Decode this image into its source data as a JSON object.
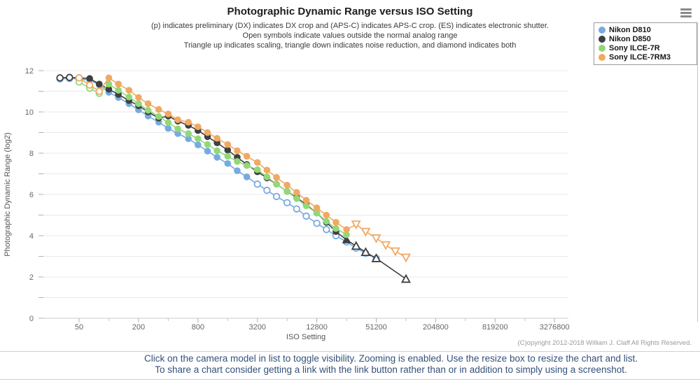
{
  "header": {
    "title": "Photographic Dynamic Range versus ISO Setting",
    "subtitle1": "(p) indicates preliminary (DX) indicates DX crop and (APS‑C) indicates APS‑C crop. (ES) indicates electronic shutter.",
    "subtitle2": "Open symbols indicate values outside the normal analog range",
    "subtitle3": "Triangle up indicates scaling, triangle down indicates noise reduction, and diamond indicates both"
  },
  "legend": {
    "items": [
      {
        "label": "Nikon D810",
        "color": "#76abdf"
      },
      {
        "label": "Nikon D850",
        "color": "#3f3f41"
      },
      {
        "label": "Sony ILCE-7R",
        "color": "#92d878"
      },
      {
        "label": "Sony ILCE-7RM3",
        "color": "#f0a963"
      }
    ]
  },
  "chart_data": {
    "type": "line",
    "title": "Photographic Dynamic Range versus ISO Setting",
    "xlabel": "ISO Setting",
    "ylabel": "Photographic Dynamic Range (log2)",
    "x_scale": "log2",
    "x_tick_values": [
      50,
      200,
      800,
      3200,
      12800,
      51200,
      204800,
      819200,
      3276800
    ],
    "x_tick_labels": [
      "50",
      "200",
      "800",
      "3200",
      "12800",
      "51200",
      "204800",
      "819200",
      "3276800"
    ],
    "y_tick_labels": [
      0,
      2,
      4,
      6,
      8,
      10,
      12
    ],
    "ylim": [
      0,
      12.3
    ],
    "grid": "horizontal-every-1",
    "legend_position": "top-right",
    "marker_note": "points are [iso, pdr, symbol(c=circle, tu=triangle-up, td=triangle-down), open(1=open outside analog range)]",
    "series": [
      {
        "name": "Nikon D810",
        "color": "#76abdf",
        "points": [
          [
            32,
            11.6,
            "c",
            1
          ],
          [
            40,
            11.62,
            "c",
            1
          ],
          [
            50,
            11.6,
            "c",
            1
          ],
          [
            64,
            11.55,
            "c",
            0
          ],
          [
            80,
            11.3,
            "c",
            0
          ],
          [
            100,
            10.95,
            "c",
            0
          ],
          [
            125,
            10.7,
            "c",
            0
          ],
          [
            160,
            10.4,
            "c",
            0
          ],
          [
            200,
            10.1,
            "c",
            0
          ],
          [
            250,
            9.8,
            "c",
            0
          ],
          [
            320,
            9.5,
            "c",
            0
          ],
          [
            400,
            9.2,
            "c",
            0
          ],
          [
            500,
            8.95,
            "c",
            0
          ],
          [
            640,
            8.7,
            "c",
            0
          ],
          [
            800,
            8.4,
            "c",
            0
          ],
          [
            1000,
            8.1,
            "c",
            0
          ],
          [
            1250,
            7.8,
            "c",
            0
          ],
          [
            1600,
            7.5,
            "c",
            0
          ],
          [
            2000,
            7.15,
            "c",
            0
          ],
          [
            2500,
            6.85,
            "c",
            0
          ],
          [
            3200,
            6.5,
            "c",
            1
          ],
          [
            4000,
            6.2,
            "c",
            1
          ],
          [
            5000,
            5.9,
            "c",
            1
          ],
          [
            6400,
            5.6,
            "c",
            1
          ],
          [
            8000,
            5.3,
            "c",
            1
          ],
          [
            10000,
            4.95,
            "c",
            1
          ],
          [
            12800,
            4.6,
            "c",
            1
          ],
          [
            16000,
            4.3,
            "c",
            1
          ],
          [
            20000,
            4.0,
            "c",
            1
          ],
          [
            25600,
            3.7,
            "c",
            1
          ],
          [
            32000,
            3.4,
            "c",
            1
          ],
          [
            40000,
            3.15,
            "c",
            1
          ],
          [
            51200,
            2.9,
            "c",
            1
          ]
        ]
      },
      {
        "name": "Nikon D850",
        "color": "#3f3f41",
        "points": [
          [
            32,
            11.65,
            "c",
            1
          ],
          [
            40,
            11.67,
            "c",
            1
          ],
          [
            50,
            11.65,
            "c",
            1
          ],
          [
            64,
            11.62,
            "c",
            0
          ],
          [
            80,
            11.35,
            "c",
            0
          ],
          [
            100,
            11.1,
            "c",
            0
          ],
          [
            125,
            10.85,
            "c",
            0
          ],
          [
            160,
            10.55,
            "c",
            0
          ],
          [
            200,
            10.3,
            "c",
            0
          ],
          [
            250,
            10.0,
            "c",
            0
          ],
          [
            320,
            9.7,
            "c",
            0
          ],
          [
            400,
            9.8,
            "c",
            0
          ],
          [
            500,
            9.55,
            "c",
            0
          ],
          [
            640,
            9.35,
            "c",
            0
          ],
          [
            800,
            9.1,
            "c",
            0
          ],
          [
            1000,
            8.8,
            "c",
            0
          ],
          [
            1250,
            8.5,
            "c",
            0
          ],
          [
            1600,
            8.15,
            "c",
            0
          ],
          [
            2000,
            7.8,
            "c",
            0
          ],
          [
            2500,
            7.45,
            "c",
            0
          ],
          [
            3200,
            7.1,
            "c",
            0
          ],
          [
            4000,
            6.8,
            "c",
            0
          ],
          [
            5000,
            6.5,
            "c",
            0
          ],
          [
            6400,
            6.15,
            "c",
            0
          ],
          [
            8000,
            5.85,
            "c",
            0
          ],
          [
            10000,
            5.5,
            "c",
            0
          ],
          [
            12800,
            5.1,
            "c",
            0
          ],
          [
            16000,
            4.65,
            "c",
            0
          ],
          [
            20000,
            4.2,
            "c",
            0
          ],
          [
            25600,
            3.8,
            "tu",
            0
          ],
          [
            32000,
            3.5,
            "tu",
            1
          ],
          [
            40000,
            3.2,
            "tu",
            1
          ],
          [
            51200,
            2.9,
            "tu",
            1
          ],
          [
            102400,
            1.9,
            "tu",
            1
          ]
        ]
      },
      {
        "name": "Sony ILCE-7R",
        "color": "#92d878",
        "points": [
          [
            50,
            11.45,
            "c",
            1
          ],
          [
            64,
            11.15,
            "c",
            1
          ],
          [
            80,
            10.9,
            "c",
            1
          ],
          [
            100,
            11.35,
            "c",
            0
          ],
          [
            125,
            11.05,
            "c",
            0
          ],
          [
            160,
            10.72,
            "c",
            0
          ],
          [
            200,
            10.4,
            "c",
            0
          ],
          [
            250,
            10.08,
            "c",
            0
          ],
          [
            320,
            9.78,
            "c",
            0
          ],
          [
            400,
            9.48,
            "c",
            0
          ],
          [
            500,
            9.18,
            "c",
            0
          ],
          [
            640,
            8.95,
            "c",
            0
          ],
          [
            800,
            8.7,
            "c",
            0
          ],
          [
            1000,
            8.42,
            "c",
            0
          ],
          [
            1250,
            8.12,
            "c",
            0
          ],
          [
            1600,
            7.85,
            "c",
            0
          ],
          [
            2000,
            7.6,
            "c",
            0
          ],
          [
            2500,
            7.4,
            "c",
            0
          ],
          [
            3200,
            7.2,
            "c",
            0
          ],
          [
            4000,
            6.85,
            "c",
            0
          ],
          [
            5000,
            6.5,
            "c",
            0
          ],
          [
            6400,
            6.15,
            "c",
            0
          ],
          [
            8000,
            5.8,
            "c",
            0
          ],
          [
            10000,
            5.45,
            "c",
            0
          ],
          [
            12800,
            5.1,
            "c",
            0
          ],
          [
            16000,
            4.7,
            "c",
            0
          ],
          [
            20000,
            4.35,
            "c",
            0
          ],
          [
            25600,
            4.05,
            "c",
            0
          ]
        ]
      },
      {
        "name": "Sony ILCE-7RM3",
        "color": "#f0a963",
        "points": [
          [
            50,
            11.65,
            "c",
            1
          ],
          [
            64,
            11.3,
            "c",
            1
          ],
          [
            80,
            11.0,
            "c",
            1
          ],
          [
            100,
            11.65,
            "c",
            0
          ],
          [
            125,
            11.35,
            "c",
            0
          ],
          [
            160,
            11.05,
            "c",
            0
          ],
          [
            200,
            10.7,
            "c",
            0
          ],
          [
            250,
            10.4,
            "c",
            0
          ],
          [
            320,
            10.12,
            "c",
            0
          ],
          [
            400,
            9.9,
            "c",
            0
          ],
          [
            500,
            9.62,
            "c",
            0
          ],
          [
            640,
            9.5,
            "c",
            0
          ],
          [
            800,
            9.28,
            "c",
            0
          ],
          [
            1000,
            9.0,
            "c",
            0
          ],
          [
            1250,
            8.72,
            "c",
            0
          ],
          [
            1600,
            8.42,
            "c",
            0
          ],
          [
            2000,
            8.12,
            "c",
            0
          ],
          [
            2500,
            7.85,
            "c",
            0
          ],
          [
            3200,
            7.55,
            "c",
            0
          ],
          [
            4000,
            7.18,
            "c",
            0
          ],
          [
            5000,
            6.82,
            "c",
            0
          ],
          [
            6400,
            6.45,
            "c",
            0
          ],
          [
            8000,
            6.1,
            "c",
            0
          ],
          [
            10000,
            5.72,
            "c",
            0
          ],
          [
            12800,
            5.35,
            "c",
            0
          ],
          [
            16000,
            5.0,
            "c",
            0
          ],
          [
            20000,
            4.65,
            "c",
            0
          ],
          [
            25600,
            4.3,
            "c",
            0
          ],
          [
            32000,
            4.55,
            "td",
            1
          ],
          [
            40000,
            4.2,
            "td",
            1
          ],
          [
            51200,
            3.88,
            "td",
            1
          ],
          [
            64000,
            3.55,
            "td",
            1
          ],
          [
            80000,
            3.25,
            "td",
            1
          ],
          [
            102400,
            2.95,
            "td",
            1
          ]
        ]
      }
    ]
  },
  "footer": {
    "copyright": "(C)opyright 2012-2018 William J. Claff All Rights Reserved.",
    "line1": "Click on the camera model in list to toggle visibility. Zooming is enabled. Use the resize box to resize the chart and list.",
    "line2": "To share a chart consider getting a link with the link button rather than or in addition to simply using a screenshot."
  }
}
